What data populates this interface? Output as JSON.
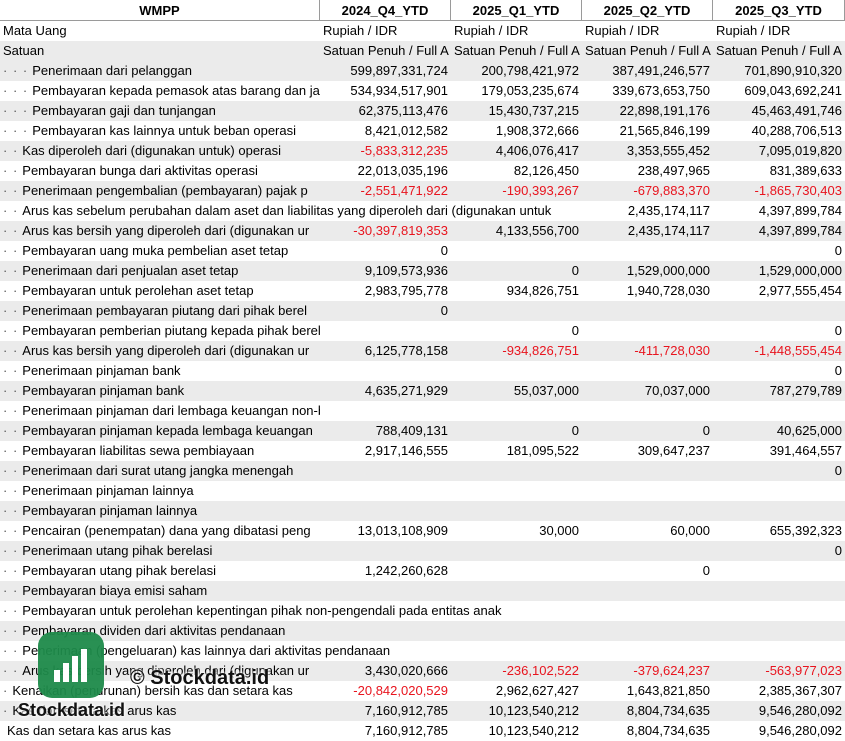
{
  "header": {
    "ticker": "WMPP",
    "columns": [
      "2024_Q4_YTD",
      "2025_Q1_YTD",
      "2025_Q2_YTD",
      "2025_Q3_YTD"
    ]
  },
  "meta_rows": [
    {
      "label": "Mata Uang",
      "values": [
        "Rupiah / IDR",
        "Rupiah / IDR",
        "Rupiah / IDR",
        "Rupiah / IDR"
      ]
    },
    {
      "label": "Satuan",
      "values": [
        "Satuan Penuh / Full A",
        "Satuan Penuh / Full A",
        "Satuan Penuh / Full A",
        "Satuan Penuh / Full A"
      ]
    }
  ],
  "rows": [
    {
      "dots": "· · ·",
      "label": "Penerimaan dari pelanggan",
      "values": [
        "599,897,331,724",
        "200,798,421,972",
        "387,491,246,577",
        "701,890,910,320"
      ]
    },
    {
      "dots": "· · ·",
      "label": "Pembayaran kepada pemasok atas barang dan ja",
      "values": [
        "534,934,517,901",
        "179,053,235,674",
        "339,673,653,750",
        "609,043,692,241"
      ]
    },
    {
      "dots": "· · ·",
      "label": "Pembayaran gaji dan tunjangan",
      "values": [
        "62,375,113,476",
        "15,430,737,215",
        "22,898,191,176",
        "45,463,491,746"
      ]
    },
    {
      "dots": "· · ·",
      "label": "Pembayaran kas lainnya untuk beban operasi",
      "values": [
        "8,421,012,582",
        "1,908,372,666",
        "21,565,846,199",
        "40,288,706,513"
      ]
    },
    {
      "dots": "· ·",
      "label": "Kas diperoleh dari (digunakan untuk) operasi",
      "values": [
        "-5,833,312,235",
        "4,406,076,417",
        "3,353,555,452",
        "7,095,019,820"
      ]
    },
    {
      "dots": "· ·",
      "label": "Pembayaran bunga dari aktivitas operasi",
      "values": [
        "22,013,035,196",
        "82,126,450",
        "238,497,965",
        "831,389,633"
      ]
    },
    {
      "dots": "· ·",
      "label": "Penerimaan pengembalian (pembayaran) pajak p",
      "values": [
        "-2,551,471,922",
        "-190,393,267",
        "-679,883,370",
        "-1,865,730,403"
      ]
    },
    {
      "dots": "· ·",
      "label": "Arus kas sebelum perubahan dalam aset dan liabilitas yang diperoleh dari (digunakan untuk",
      "values": [
        "",
        "",
        "2,435,174,117",
        "4,397,899,784"
      ],
      "spans": true
    },
    {
      "dots": "· ·",
      "label": "Arus kas bersih yang diperoleh dari (digunakan ur",
      "values": [
        "-30,397,819,353",
        "4,133,556,700",
        "2,435,174,117",
        "4,397,899,784"
      ]
    },
    {
      "dots": "· ·",
      "label": "Pembayaran uang muka pembelian aset tetap",
      "values": [
        "0",
        "",
        "",
        "0"
      ]
    },
    {
      "dots": "· ·",
      "label": "Penerimaan dari penjualan aset tetap",
      "values": [
        "9,109,573,936",
        "0",
        "1,529,000,000",
        "1,529,000,000"
      ]
    },
    {
      "dots": "· ·",
      "label": "Pembayaran untuk perolehan aset tetap",
      "values": [
        "2,983,795,778",
        "934,826,751",
        "1,940,728,030",
        "2,977,555,454"
      ]
    },
    {
      "dots": "· ·",
      "label": "Penerimaan pembayaran piutang dari pihak berel",
      "values": [
        "0",
        "",
        "",
        ""
      ]
    },
    {
      "dots": "· ·",
      "label": "Pembayaran pemberian piutang kepada pihak berelasi",
      "values": [
        "",
        "0",
        "",
        "0"
      ]
    },
    {
      "dots": "· ·",
      "label": "Arus kas bersih yang diperoleh dari (digunakan ur",
      "values": [
        "6,125,778,158",
        "-934,826,751",
        "-411,728,030",
        "-1,448,555,454"
      ]
    },
    {
      "dots": "· ·",
      "label": "Penerimaan pinjaman bank",
      "values": [
        "",
        "",
        "",
        "0"
      ]
    },
    {
      "dots": "· ·",
      "label": "Pembayaran pinjaman bank",
      "values": [
        "4,635,271,929",
        "55,037,000",
        "70,037,000",
        "787,279,789"
      ]
    },
    {
      "dots": "· ·",
      "label": "Penerimaan pinjaman dari lembaga keuangan non-bank",
      "values": [
        "",
        "",
        "",
        ""
      ]
    },
    {
      "dots": "· ·",
      "label": "Pembayaran pinjaman kepada lembaga keuangan",
      "values": [
        "788,409,131",
        "0",
        "0",
        "40,625,000"
      ]
    },
    {
      "dots": "· ·",
      "label": "Pembayaran liabilitas sewa pembiayaan",
      "values": [
        "2,917,146,555",
        "181,095,522",
        "309,647,237",
        "391,464,557"
      ]
    },
    {
      "dots": "· ·",
      "label": "Penerimaan dari surat utang jangka menengah",
      "values": [
        "",
        "",
        "",
        "0"
      ]
    },
    {
      "dots": "· ·",
      "label": "Penerimaan pinjaman lainnya",
      "values": [
        "",
        "",
        "",
        ""
      ]
    },
    {
      "dots": "· ·",
      "label": "Pembayaran pinjaman lainnya",
      "values": [
        "",
        "",
        "",
        ""
      ]
    },
    {
      "dots": "· ·",
      "label": "Pencairan (penempatan) dana yang dibatasi peng",
      "values": [
        "13,013,108,909",
        "30,000",
        "60,000",
        "655,392,323"
      ]
    },
    {
      "dots": "· ·",
      "label": "Penerimaan utang pihak berelasi",
      "values": [
        "",
        "",
        "",
        "0"
      ]
    },
    {
      "dots": "· ·",
      "label": "Pembayaran utang pihak berelasi",
      "values": [
        "1,242,260,628",
        "",
        "0",
        ""
      ]
    },
    {
      "dots": "· ·",
      "label": "Pembayaran biaya emisi saham",
      "values": [
        "",
        "",
        "",
        ""
      ]
    },
    {
      "dots": "· ·",
      "label": "Pembayaran untuk perolehan kepentingan pihak non-pengendali pada entitas anak",
      "values": [
        "",
        "",
        "",
        ""
      ],
      "spans": true
    },
    {
      "dots": "· ·",
      "label": "Pembayaran dividen dari aktivitas pendanaan",
      "values": [
        "",
        "",
        "",
        ""
      ]
    },
    {
      "dots": "· ·",
      "label": "Penerimaan (pengeluaran) kas lainnya dari aktivitas pendanaan",
      "values": [
        "",
        "",
        "",
        ""
      ],
      "spans": true
    },
    {
      "dots": "· ·",
      "label": "Arus kas bersih yang diperoleh dari (digunakan ur",
      "values": [
        "3,430,020,666",
        "-236,102,522",
        "-379,624,237",
        "-563,977,023"
      ]
    },
    {
      "dots": "·",
      "label": "Kenaikan (penurunan) bersih kas dan setara kas",
      "values": [
        "-20,842,020,529",
        "2,962,627,427",
        "1,643,821,850",
        "2,385,367,307"
      ]
    },
    {
      "dots": "·",
      "label": "Kas dan setara kas arus kas",
      "values": [
        "7,160,912,785",
        "10,123,540,212",
        "8,804,734,635",
        "9,546,280,092"
      ]
    },
    {
      "dots": "",
      "label": "Kas dan setara kas arus kas",
      "values": [
        "7,160,912,785",
        "10,123,540,212",
        "8,804,734,635",
        "9,546,280,092"
      ]
    }
  ],
  "watermark": {
    "copyright": "© Stockdata.id",
    "brand": "Stockdata.id",
    "logo_icon": "bar-chart-logo-icon"
  },
  "colors": {
    "negative": "#e8141e",
    "stripe": "#ebebeb",
    "logo": "#1d8a4a"
  }
}
